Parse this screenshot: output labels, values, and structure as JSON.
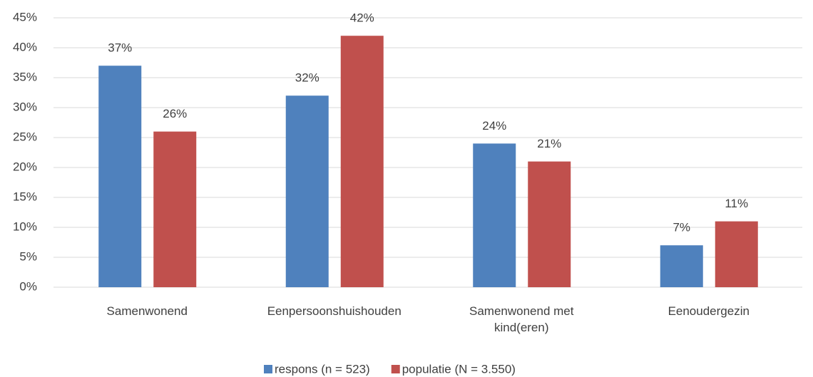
{
  "chart_data": {
    "type": "bar",
    "categories": [
      "Samenwonend",
      "Eenpersoonshuishouden",
      "Samenwonend met kind(eren)",
      "Eenoudergezin"
    ],
    "series": [
      {
        "name": "respons (n = 523)",
        "color": "#4f81bd",
        "values": [
          37,
          32,
          24,
          7
        ],
        "value_labels": [
          "37%",
          "32%",
          "24%",
          "7%"
        ]
      },
      {
        "name": "populatie (N = 3.550)",
        "color": "#c0504d",
        "values": [
          26,
          42,
          21,
          11
        ],
        "value_labels": [
          "26%",
          "42%",
          "21%",
          "11%"
        ]
      }
    ],
    "ylim": [
      0,
      45
    ],
    "yticks": [
      {
        "value": 0,
        "label": "0%"
      },
      {
        "value": 5,
        "label": "5%"
      },
      {
        "value": 10,
        "label": "10%"
      },
      {
        "value": 15,
        "label": "15%"
      },
      {
        "value": 20,
        "label": "20%"
      },
      {
        "value": 25,
        "label": "25%"
      },
      {
        "value": 30,
        "label": "30%"
      },
      {
        "value": 35,
        "label": "35%"
      },
      {
        "value": 40,
        "label": "40%"
      },
      {
        "value": 45,
        "label": "45%"
      }
    ],
    "grid": true,
    "legend": "bottom"
  }
}
